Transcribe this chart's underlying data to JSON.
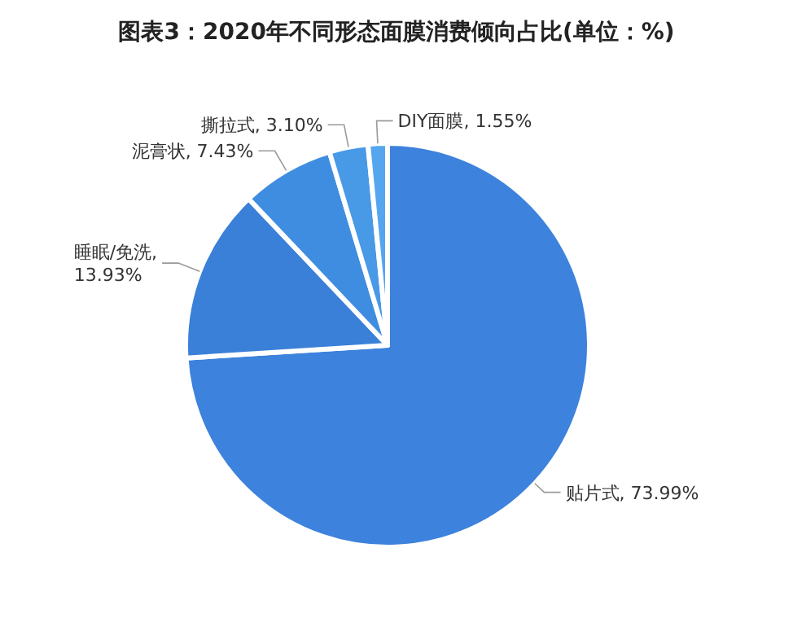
{
  "chart_data": {
    "type": "pie",
    "title": "图表3：2020年不同形态面膜消费倾向占比(单位：%)",
    "categories": [
      "贴片式",
      "睡眠/免洗",
      "泥膏状",
      "撕拉式",
      "DIY面膜"
    ],
    "values": [
      73.99,
      13.93,
      7.43,
      3.1,
      1.55
    ],
    "value_labels": [
      ", 73.99%",
      ",\n13.93%",
      ", 7.43%",
      ", 3.10%",
      ", 1.55%"
    ],
    "colors": [
      "#3d82dc",
      "#3a80d8",
      "#3f8de0",
      "#4899e6",
      "#55a6ee"
    ],
    "legend": false
  }
}
